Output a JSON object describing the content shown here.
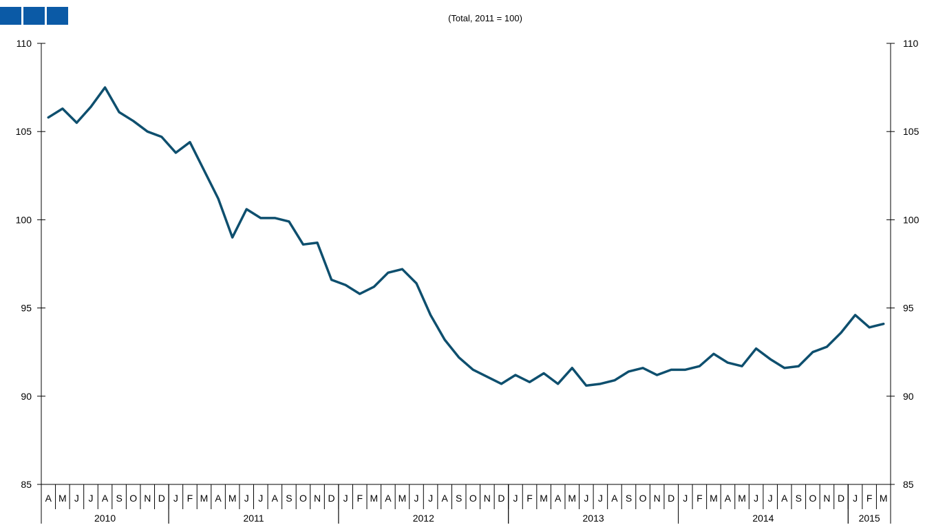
{
  "header": {
    "subtitle": "(Total,  2011  =  100)",
    "logo_squares": 3,
    "logo_color": "#0b5aa6"
  },
  "chart_data": {
    "type": "line",
    "title": "",
    "subtitle": "(Total,  2011  =  100)",
    "xlabel": "",
    "ylabel": "",
    "ylim": [
      85,
      110
    ],
    "yticks": [
      85,
      90,
      95,
      100,
      105,
      110
    ],
    "ytick_labels": [
      "85",
      "90",
      "95",
      "100",
      "105",
      "110"
    ],
    "dual_y_axis": true,
    "grid": false,
    "legend": "none",
    "line_color": "#0e4f6e",
    "month_labels": [
      "A",
      "M",
      "J",
      "J",
      "A",
      "S",
      "O",
      "N",
      "D",
      "J",
      "F",
      "M",
      "A",
      "M",
      "J",
      "J",
      "A",
      "S",
      "O",
      "N",
      "D",
      "J",
      "F",
      "M",
      "A",
      "M",
      "J",
      "J",
      "A",
      "S",
      "O",
      "N",
      "D",
      "J",
      "F",
      "M",
      "A",
      "M",
      "J",
      "J",
      "A",
      "S",
      "O",
      "N",
      "D",
      "J",
      "F",
      "M",
      "A",
      "M",
      "J",
      "J",
      "A",
      "S",
      "O",
      "N",
      "D",
      "J",
      "F",
      "M"
    ],
    "year_groups": [
      {
        "label": "2010",
        "start": 0,
        "count": 9
      },
      {
        "label": "2011",
        "start": 9,
        "count": 12
      },
      {
        "label": "2012",
        "start": 21,
        "count": 12
      },
      {
        "label": "2013",
        "start": 33,
        "count": 12
      },
      {
        "label": "2014",
        "start": 45,
        "count": 12
      },
      {
        "label": "2015",
        "start": 57,
        "count": 3
      }
    ],
    "series": [
      {
        "values": [
          105.8,
          106.3,
          105.5,
          106.4,
          107.5,
          106.1,
          105.6,
          105.0,
          104.7,
          103.8,
          104.4,
          102.8,
          101.2,
          99.0,
          100.6,
          100.1,
          100.1,
          99.9,
          98.6,
          98.7,
          96.6,
          96.3,
          95.8,
          96.2,
          97.0,
          97.2,
          96.4,
          94.6,
          93.2,
          92.2,
          91.5,
          91.1,
          90.7,
          91.2,
          90.8,
          91.3,
          90.7,
          91.6,
          90.6,
          90.7,
          90.9,
          91.4,
          91.6,
          91.2,
          91.5,
          91.5,
          91.7,
          92.4,
          91.9,
          91.7,
          92.7,
          92.1,
          91.6,
          91.7,
          92.5,
          92.8,
          93.6,
          94.6,
          93.9,
          94.1
        ]
      }
    ]
  }
}
